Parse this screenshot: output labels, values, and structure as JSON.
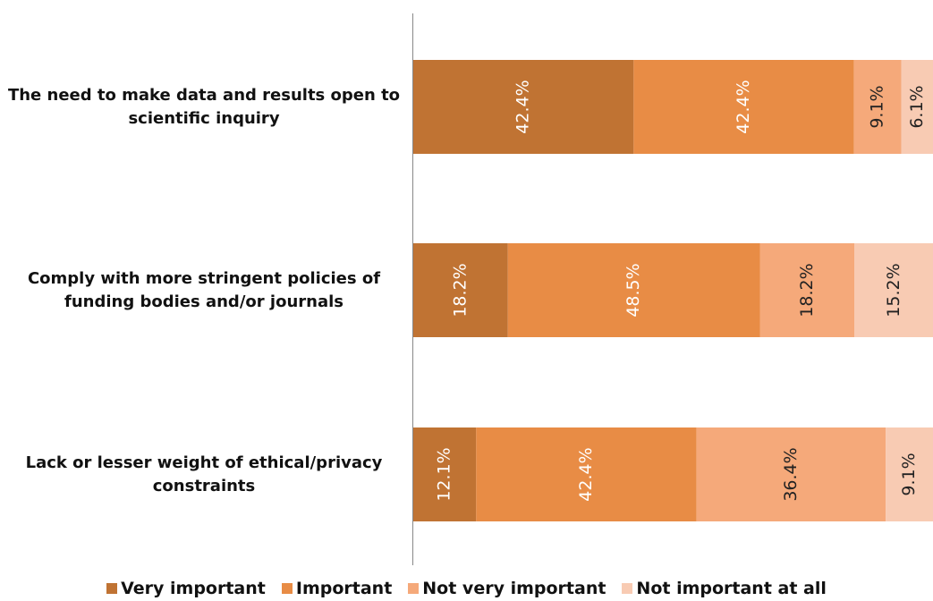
{
  "chart_data": {
    "type": "stacked_barh",
    "categories": [
      "The need to make data and results open to scientific inquiry",
      "Comply with more stringent policies of funding bodies and/or journals",
      "Lack or lesser weight of ethical/privacy constraints"
    ],
    "series": [
      {
        "name": "Very important",
        "color": "#c07333",
        "values": [
          42.4,
          18.2,
          12.1
        ],
        "value_labels": [
          "42.4%",
          "18.2%",
          "12.1%"
        ]
      },
      {
        "name": "Important",
        "color": "#e88c45",
        "values": [
          42.4,
          48.5,
          42.4
        ],
        "value_labels": [
          "42.4%",
          "48.5%",
          "42.4%"
        ]
      },
      {
        "name": "Not very important",
        "color": "#f5a97a",
        "values": [
          9.1,
          18.2,
          36.4
        ],
        "value_labels": [
          "9.1%",
          "18.2%",
          "36.4%"
        ]
      },
      {
        "name": "Not important at all",
        "color": "#f8cbb3",
        "values": [
          6.1,
          15.2,
          9.1
        ],
        "value_labels": [
          "6.1%",
          "15.2%",
          "9.1%"
        ]
      }
    ],
    "xlim": [
      0,
      100
    ],
    "legend": "bottom"
  }
}
